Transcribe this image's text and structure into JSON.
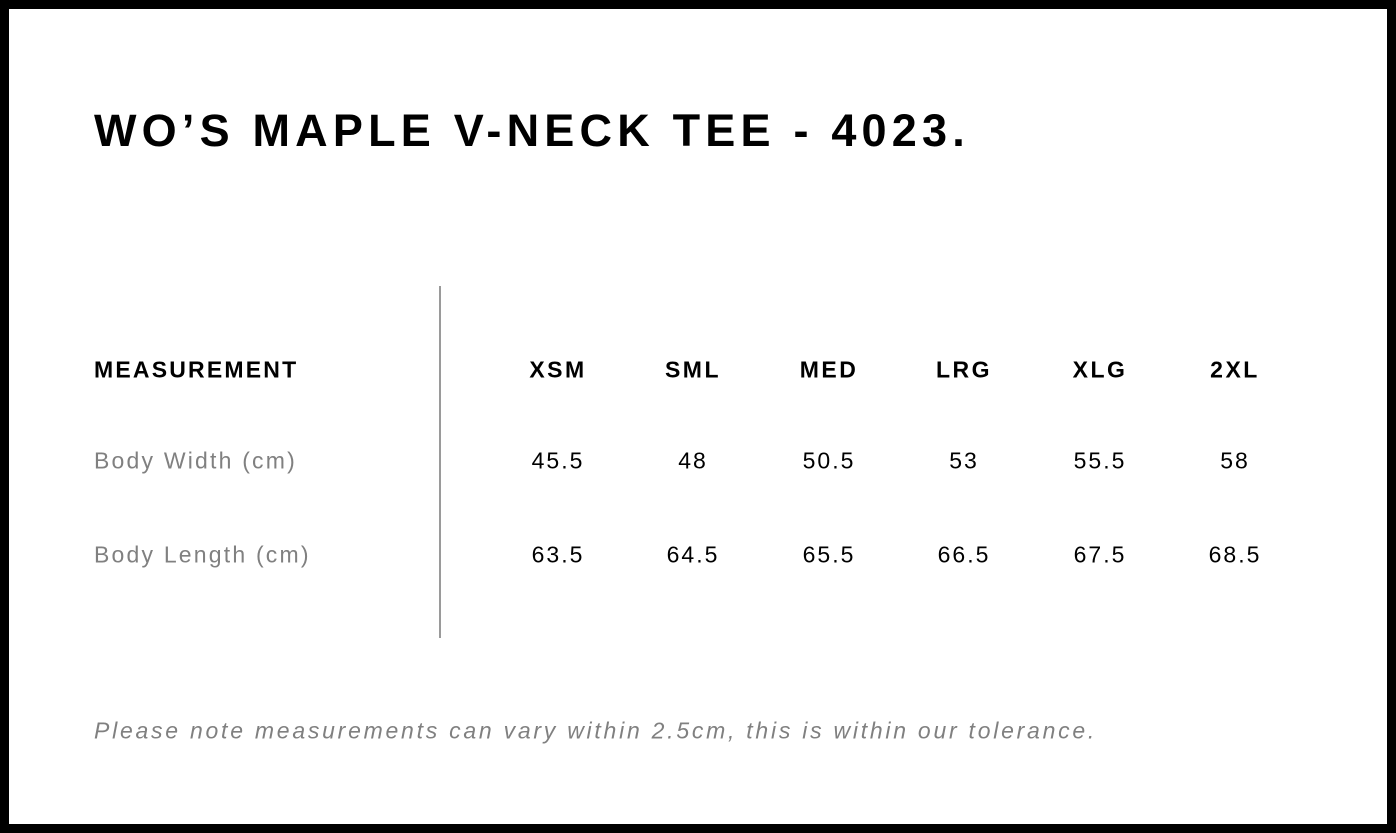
{
  "title": "WO’S MAPLE V-NECK TEE - 4023.",
  "table": {
    "header_label": "MEASUREMENT",
    "sizes": [
      "XSM",
      "SML",
      "MED",
      "LRG",
      "XLG",
      "2XL"
    ],
    "rows": [
      {
        "label": "Body Width (cm)",
        "values": [
          "45.5",
          "48",
          "50.5",
          "53",
          "55.5",
          "58"
        ]
      },
      {
        "label": "Body Length (cm)",
        "values": [
          "63.5",
          "64.5",
          "65.5",
          "66.5",
          "67.5",
          "68.5"
        ]
      }
    ]
  },
  "note": "Please note measurements can vary within 2.5cm, this is within our tolerance."
}
